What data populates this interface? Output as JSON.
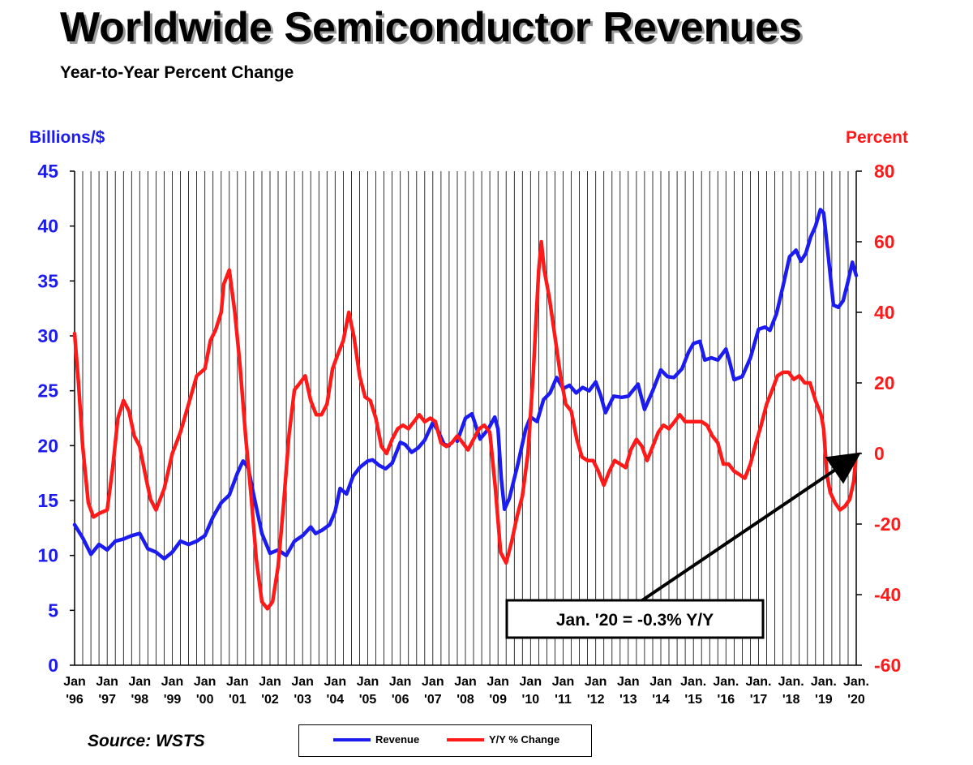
{
  "title": "Worldwide Semiconductor Revenues",
  "subtitle": "Year-to-Year Percent Change",
  "source": "Source: WSTS",
  "colors": {
    "revenue": "#1c1cf0",
    "yoy": "#ff1a1a",
    "grid": "#000000",
    "axis_left_text": "#1c1cf0",
    "axis_right_text": "#ff1a1a"
  },
  "chart_data": {
    "type": "line",
    "title": "Worldwide Semiconductor Revenues",
    "subtitle": "Year-to-Year Percent Change",
    "y_left": {
      "label": "Billions/$",
      "range": [
        0,
        45
      ],
      "ticks": [
        0,
        5,
        10,
        15,
        20,
        25,
        30,
        35,
        40,
        45
      ]
    },
    "y_right": {
      "label": "Percent",
      "range": [
        -60,
        80
      ],
      "ticks": [
        -60,
        -40,
        -20,
        0,
        20,
        40,
        60,
        80
      ]
    },
    "x": {
      "range": [
        1996.0,
        2020.0
      ],
      "tick_positions": [
        1996,
        1997,
        1998,
        1999,
        2000,
        2001,
        2002,
        2003,
        2004,
        2005,
        2006,
        2007,
        2008,
        2009,
        2010,
        2011,
        2012,
        2013,
        2014,
        2015,
        2016,
        2017,
        2018,
        2019,
        2020
      ],
      "tick_labels": [
        [
          "Jan",
          "'96"
        ],
        [
          "Jan",
          "'97"
        ],
        [
          "Jan",
          "'98"
        ],
        [
          "Jan",
          "'99"
        ],
        [
          "Jan",
          "'00"
        ],
        [
          "Jan",
          "'01"
        ],
        [
          "Jan",
          "'02"
        ],
        [
          "Jan",
          "'03"
        ],
        [
          "Jan",
          "'04"
        ],
        [
          "Jan",
          "'05"
        ],
        [
          "Jan",
          "'06"
        ],
        [
          "Jan",
          "'07"
        ],
        [
          "Jan",
          "'08"
        ],
        [
          "Jan",
          "'09"
        ],
        [
          "Jan",
          "'10"
        ],
        [
          "Jan",
          "'11"
        ],
        [
          "Jan",
          "'12"
        ],
        [
          "Jan",
          "'13"
        ],
        [
          "Jan",
          "'14"
        ],
        [
          "Jan.",
          "'15"
        ],
        [
          "Jan.",
          "'16"
        ],
        [
          "Jan.",
          "'17"
        ],
        [
          "Jan.",
          "'18"
        ],
        [
          "Jan.",
          "'19"
        ],
        [
          "Jan.",
          "'20"
        ]
      ]
    },
    "grid": "vertical lines at monthly intervals",
    "legend": "bottom-center",
    "series": [
      {
        "name": "Revenue",
        "axis": "left",
        "points": [
          [
            1996.0,
            12.8
          ],
          [
            1996.25,
            11.6
          ],
          [
            1996.5,
            10.1
          ],
          [
            1996.75,
            11.0
          ],
          [
            1997.0,
            10.5
          ],
          [
            1997.25,
            11.3
          ],
          [
            1997.5,
            11.5
          ],
          [
            1997.75,
            11.8
          ],
          [
            1998.0,
            12.0
          ],
          [
            1998.25,
            10.6
          ],
          [
            1998.5,
            10.3
          ],
          [
            1998.75,
            9.7
          ],
          [
            1999.0,
            10.3
          ],
          [
            1999.25,
            11.3
          ],
          [
            1999.5,
            11.0
          ],
          [
            1999.75,
            11.3
          ],
          [
            2000.0,
            11.8
          ],
          [
            2000.25,
            13.5
          ],
          [
            2000.5,
            14.8
          ],
          [
            2000.75,
            15.5
          ],
          [
            2001.0,
            17.5
          ],
          [
            2001.17,
            18.6
          ],
          [
            2001.33,
            18.0
          ],
          [
            2001.5,
            15.5
          ],
          [
            2001.75,
            12.0
          ],
          [
            2002.0,
            10.2
          ],
          [
            2002.25,
            10.5
          ],
          [
            2002.5,
            10.0
          ],
          [
            2002.75,
            11.3
          ],
          [
            2003.0,
            11.8
          ],
          [
            2003.25,
            12.6
          ],
          [
            2003.4,
            12.0
          ],
          [
            2003.6,
            12.3
          ],
          [
            2003.83,
            12.8
          ],
          [
            2004.0,
            14.0
          ],
          [
            2004.15,
            16.1
          ],
          [
            2004.35,
            15.6
          ],
          [
            2004.55,
            17.2
          ],
          [
            2004.75,
            18.0
          ],
          [
            2005.0,
            18.6
          ],
          [
            2005.15,
            18.7
          ],
          [
            2005.35,
            18.2
          ],
          [
            2005.55,
            17.9
          ],
          [
            2005.75,
            18.4
          ],
          [
            2006.0,
            20.3
          ],
          [
            2006.15,
            20.1
          ],
          [
            2006.35,
            19.4
          ],
          [
            2006.55,
            19.8
          ],
          [
            2006.75,
            20.5
          ],
          [
            2007.0,
            22.1
          ],
          [
            2007.15,
            21.4
          ],
          [
            2007.35,
            20.1
          ],
          [
            2007.5,
            20.0
          ]
        ],
        "points_2": [
          [
            2007.75,
            20.4
          ],
          [
            2008.0,
            22.5
          ],
          [
            2008.2,
            22.9
          ],
          [
            2008.45,
            20.6
          ],
          [
            2008.7,
            21.5
          ],
          [
            2008.9,
            22.6
          ],
          [
            2009.0,
            21.5
          ],
          [
            2009.1,
            17.0
          ],
          [
            2009.2,
            14.2
          ],
          [
            2009.35,
            15.2
          ],
          [
            2009.6,
            18.2
          ],
          [
            2009.85,
            21.5
          ],
          [
            2010.0,
            22.6
          ],
          [
            2010.2,
            22.2
          ],
          [
            2010.4,
            24.2
          ],
          [
            2010.6,
            24.8
          ],
          [
            2010.8,
            26.2
          ],
          [
            2011.0,
            25.2
          ],
          [
            2011.2,
            25.5
          ],
          [
            2011.4,
            24.8
          ],
          [
            2011.6,
            25.3
          ],
          [
            2011.8,
            25.0
          ],
          [
            2012.0,
            25.8
          ],
          [
            2012.15,
            24.6
          ],
          [
            2012.3,
            23.0
          ],
          [
            2012.55,
            24.5
          ],
          [
            2012.8,
            24.4
          ],
          [
            2013.0,
            24.5
          ],
          [
            2013.3,
            25.6
          ],
          [
            2013.5,
            23.3
          ],
          [
            2013.75,
            25.0
          ],
          [
            2014.0,
            26.9
          ],
          [
            2014.2,
            26.3
          ],
          [
            2014.4,
            26.2
          ],
          [
            2014.65,
            27.0
          ],
          [
            2014.85,
            28.5
          ],
          [
            2015.0,
            29.3
          ],
          [
            2015.2,
            29.5
          ],
          [
            2015.35,
            27.8
          ],
          [
            2015.55,
            28.0
          ],
          [
            2015.75,
            27.8
          ],
          [
            2016.0,
            28.8
          ],
          [
            2016.1,
            27.8
          ],
          [
            2016.25,
            26.0
          ],
          [
            2016.5,
            26.3
          ],
          [
            2016.75,
            28.0
          ],
          [
            2017.0,
            30.6
          ],
          [
            2017.2,
            30.8
          ],
          [
            2017.35,
            30.5
          ],
          [
            2017.55,
            32.0
          ],
          [
            2017.75,
            34.5
          ],
          [
            2017.95,
            37.2
          ],
          [
            2018.15,
            37.8
          ],
          [
            2018.3,
            36.8
          ],
          [
            2018.45,
            37.5
          ],
          [
            2018.6,
            39.0
          ],
          [
            2018.75,
            40.0
          ],
          [
            2018.9,
            41.5
          ],
          [
            2019.0,
            41.2
          ],
          [
            2019.15,
            37.0
          ],
          [
            2019.3,
            32.8
          ],
          [
            2019.45,
            32.6
          ],
          [
            2019.6,
            33.2
          ],
          [
            2019.75,
            35.0
          ],
          [
            2019.88,
            36.7
          ],
          [
            2020.0,
            35.5
          ]
        ]
      },
      {
        "name": "Y/Y % Change",
        "axis": "right",
        "points": [
          [
            1996.0,
            34
          ],
          [
            1996.12,
            20
          ],
          [
            1996.25,
            2
          ],
          [
            1996.42,
            -14
          ],
          [
            1996.58,
            -18
          ],
          [
            1996.75,
            -17
          ],
          [
            1997.0,
            -16
          ],
          [
            1997.17,
            -4
          ],
          [
            1997.33,
            10
          ],
          [
            1997.5,
            15
          ],
          [
            1997.67,
            12
          ],
          [
            1997.83,
            5
          ],
          [
            1998.0,
            2
          ],
          [
            1998.17,
            -6
          ],
          [
            1998.33,
            -13
          ],
          [
            1998.5,
            -16
          ],
          [
            1998.75,
            -10
          ],
          [
            1999.0,
            0
          ],
          [
            1999.25,
            6
          ],
          [
            1999.5,
            14
          ],
          [
            1999.75,
            22
          ],
          [
            2000.0,
            24
          ],
          [
            2000.17,
            32
          ],
          [
            2000.33,
            35
          ],
          [
            2000.5,
            40
          ],
          [
            2000.58,
            48
          ],
          [
            2000.75,
            52
          ],
          [
            2000.92,
            40
          ],
          [
            2001.08,
            25
          ],
          [
            2001.25,
            5
          ],
          [
            2001.42,
            -12
          ],
          [
            2001.58,
            -30
          ],
          [
            2001.75,
            -42
          ],
          [
            2001.92,
            -44
          ],
          [
            2002.08,
            -42
          ],
          [
            2002.25,
            -32
          ],
          [
            2002.42,
            -14
          ],
          [
            2002.58,
            5
          ],
          [
            2002.75,
            18
          ],
          [
            2002.92,
            20
          ],
          [
            2003.08,
            22
          ],
          [
            2003.25,
            15
          ],
          [
            2003.42,
            11
          ],
          [
            2003.58,
            11
          ],
          [
            2003.75,
            14
          ],
          [
            2003.92,
            24
          ],
          [
            2004.08,
            28
          ],
          [
            2004.25,
            32
          ],
          [
            2004.42,
            40
          ],
          [
            2004.58,
            33
          ],
          [
            2004.75,
            22
          ],
          [
            2004.92,
            16
          ],
          [
            2005.08,
            15
          ],
          [
            2005.25,
            10
          ],
          [
            2005.42,
            2
          ],
          [
            2005.58,
            0
          ],
          [
            2005.75,
            4
          ],
          [
            2005.92,
            7
          ],
          [
            2006.08,
            8
          ],
          [
            2006.25,
            7
          ],
          [
            2006.42,
            9
          ],
          [
            2006.58,
            11
          ],
          [
            2006.75,
            9
          ],
          [
            2006.92,
            10
          ],
          [
            2007.08,
            9
          ],
          [
            2007.25,
            3
          ],
          [
            2007.42,
            2
          ],
          [
            2007.58,
            3
          ],
          [
            2007.75,
            5
          ],
          [
            2007.92,
            3
          ],
          [
            2008.08,
            1
          ],
          [
            2008.25,
            4
          ],
          [
            2008.42,
            7
          ],
          [
            2008.58,
            8
          ],
          [
            2008.75,
            6
          ],
          [
            2008.92,
            -10
          ],
          [
            2009.08,
            -28
          ],
          [
            2009.25,
            -31
          ],
          [
            2009.42,
            -25
          ],
          [
            2009.58,
            -18
          ],
          [
            2009.75,
            -12
          ],
          [
            2009.92,
            0
          ],
          [
            2010.08,
            22
          ],
          [
            2010.25,
            52
          ],
          [
            2010.33,
            60
          ],
          [
            2010.42,
            52
          ],
          [
            2010.58,
            44
          ],
          [
            2010.75,
            33
          ],
          [
            2010.92,
            22
          ],
          [
            2011.08,
            14
          ],
          [
            2011.25,
            12
          ],
          [
            2011.42,
            4
          ],
          [
            2011.58,
            -1
          ],
          [
            2011.75,
            -2
          ],
          [
            2011.92,
            -2
          ],
          [
            2012.08,
            -5
          ],
          [
            2012.25,
            -9
          ],
          [
            2012.42,
            -5
          ],
          [
            2012.58,
            -2
          ],
          [
            2012.75,
            -3
          ],
          [
            2012.92,
            -4
          ],
          [
            2013.08,
            1
          ],
          [
            2013.25,
            4
          ],
          [
            2013.42,
            2
          ],
          [
            2013.58,
            -2
          ],
          [
            2013.75,
            2
          ],
          [
            2013.92,
            6
          ],
          [
            2014.08,
            8
          ],
          [
            2014.25,
            7
          ],
          [
            2014.42,
            9
          ],
          [
            2014.58,
            11
          ],
          [
            2014.75,
            9
          ],
          [
            2014.92,
            9
          ],
          [
            2015.08,
            9
          ],
          [
            2015.25,
            9
          ],
          [
            2015.42,
            8
          ],
          [
            2015.58,
            5
          ],
          [
            2015.75,
            3
          ],
          [
            2015.92,
            -3
          ],
          [
            2016.08,
            -3
          ],
          [
            2016.25,
            -5
          ],
          [
            2016.42,
            -6
          ],
          [
            2016.58,
            -7
          ],
          [
            2016.75,
            -3
          ],
          [
            2016.92,
            3
          ],
          [
            2017.08,
            8
          ],
          [
            2017.25,
            14
          ],
          [
            2017.42,
            18
          ],
          [
            2017.58,
            22
          ],
          [
            2017.75,
            23
          ],
          [
            2017.92,
            23
          ],
          [
            2018.08,
            21
          ],
          [
            2018.25,
            22
          ],
          [
            2018.42,
            20
          ],
          [
            2018.58,
            20
          ],
          [
            2018.75,
            15
          ],
          [
            2018.92,
            11
          ],
          [
            2019.0,
            7
          ],
          [
            2019.1,
            -6
          ],
          [
            2019.2,
            -11
          ],
          [
            2019.35,
            -14
          ],
          [
            2019.5,
            -16
          ],
          [
            2019.65,
            -15
          ],
          [
            2019.8,
            -13
          ],
          [
            2019.92,
            -8
          ],
          [
            2020.0,
            -0.3
          ]
        ]
      }
    ],
    "annotation": {
      "text": "Jan. '20 = -0.3% Y/Y",
      "points_to": [
        2020.0,
        -0.3
      ]
    }
  },
  "legend": {
    "revenue_label": "Revenue",
    "yoy_label": "Y/Y % Change"
  }
}
